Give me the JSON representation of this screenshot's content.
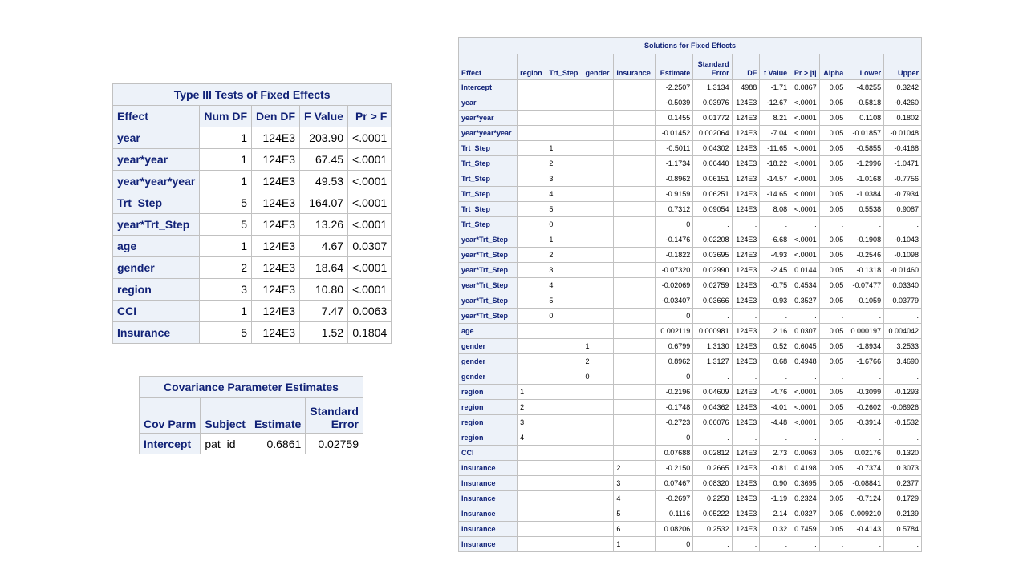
{
  "type3": {
    "title": "Type III Tests of Fixed Effects",
    "headers": [
      "Effect",
      "Num DF",
      "Den DF",
      "F Value",
      "Pr > F"
    ],
    "rows": [
      [
        "year",
        "1",
        "124E3",
        "203.90",
        "<.0001"
      ],
      [
        "year*year",
        "1",
        "124E3",
        "67.45",
        "<.0001"
      ],
      [
        "year*year*year",
        "1",
        "124E3",
        "49.53",
        "<.0001"
      ],
      [
        "Trt_Step",
        "5",
        "124E3",
        "164.07",
        "<.0001"
      ],
      [
        "year*Trt_Step",
        "5",
        "124E3",
        "13.26",
        "<.0001"
      ],
      [
        "age",
        "1",
        "124E3",
        "4.67",
        "0.0307"
      ],
      [
        "gender",
        "2",
        "124E3",
        "18.64",
        "<.0001"
      ],
      [
        "region",
        "3",
        "124E3",
        "10.80",
        "<.0001"
      ],
      [
        "CCI",
        "1",
        "124E3",
        "7.47",
        "0.0063"
      ],
      [
        "Insurance",
        "5",
        "124E3",
        "1.52",
        "0.1804"
      ]
    ]
  },
  "cov": {
    "title": "Covariance Parameter Estimates",
    "headers": [
      [
        "Cov Parm"
      ],
      [
        "Subject"
      ],
      [
        "Estimate"
      ],
      [
        "Standard",
        "Error"
      ]
    ],
    "rows": [
      [
        "Intercept",
        "pat_id",
        "0.6861",
        "0.02759"
      ]
    ]
  },
  "solutions": {
    "title": "Solutions for Fixed Effects",
    "headers": [
      [
        "Effect"
      ],
      [
        "region"
      ],
      [
        "Trt_Step"
      ],
      [
        "gender"
      ],
      [
        "Insurance"
      ],
      [
        "Estimate"
      ],
      [
        "Standard",
        "Error"
      ],
      [
        "DF"
      ],
      [
        "t Value"
      ],
      [
        "Pr > |t|"
      ],
      [
        "Alpha"
      ],
      [
        "Lower"
      ],
      [
        "Upper"
      ]
    ],
    "rows": [
      [
        "Intercept",
        "",
        "",
        "",
        "",
        "-2.2507",
        "1.3134",
        "4988",
        "-1.71",
        "0.0867",
        "0.05",
        "-4.8255",
        "0.3242"
      ],
      [
        "year",
        "",
        "",
        "",
        "",
        "-0.5039",
        "0.03976",
        "124E3",
        "-12.67",
        "<.0001",
        "0.05",
        "-0.5818",
        "-0.4260"
      ],
      [
        "year*year",
        "",
        "",
        "",
        "",
        "0.1455",
        "0.01772",
        "124E3",
        "8.21",
        "<.0001",
        "0.05",
        "0.1108",
        "0.1802"
      ],
      [
        "year*year*year",
        "",
        "",
        "",
        "",
        "-0.01452",
        "0.002064",
        "124E3",
        "-7.04",
        "<.0001",
        "0.05",
        "-0.01857",
        "-0.01048"
      ],
      [
        "Trt_Step",
        "",
        "1",
        "",
        "",
        "-0.5011",
        "0.04302",
        "124E3",
        "-11.65",
        "<.0001",
        "0.05",
        "-0.5855",
        "-0.4168"
      ],
      [
        "Trt_Step",
        "",
        "2",
        "",
        "",
        "-1.1734",
        "0.06440",
        "124E3",
        "-18.22",
        "<.0001",
        "0.05",
        "-1.2996",
        "-1.0471"
      ],
      [
        "Trt_Step",
        "",
        "3",
        "",
        "",
        "-0.8962",
        "0.06151",
        "124E3",
        "-14.57",
        "<.0001",
        "0.05",
        "-1.0168",
        "-0.7756"
      ],
      [
        "Trt_Step",
        "",
        "4",
        "",
        "",
        "-0.9159",
        "0.06251",
        "124E3",
        "-14.65",
        "<.0001",
        "0.05",
        "-1.0384",
        "-0.7934"
      ],
      [
        "Trt_Step",
        "",
        "5",
        "",
        "",
        "0.7312",
        "0.09054",
        "124E3",
        "8.08",
        "<.0001",
        "0.05",
        "0.5538",
        "0.9087"
      ],
      [
        "Trt_Step",
        "",
        "0",
        "",
        "",
        "0",
        ".",
        ".",
        ".",
        ".",
        ".",
        ".",
        "."
      ],
      [
        "year*Trt_Step",
        "",
        "1",
        "",
        "",
        "-0.1476",
        "0.02208",
        "124E3",
        "-6.68",
        "<.0001",
        "0.05",
        "-0.1908",
        "-0.1043"
      ],
      [
        "year*Trt_Step",
        "",
        "2",
        "",
        "",
        "-0.1822",
        "0.03695",
        "124E3",
        "-4.93",
        "<.0001",
        "0.05",
        "-0.2546",
        "-0.1098"
      ],
      [
        "year*Trt_Step",
        "",
        "3",
        "",
        "",
        "-0.07320",
        "0.02990",
        "124E3",
        "-2.45",
        "0.0144",
        "0.05",
        "-0.1318",
        "-0.01460"
      ],
      [
        "year*Trt_Step",
        "",
        "4",
        "",
        "",
        "-0.02069",
        "0.02759",
        "124E3",
        "-0.75",
        "0.4534",
        "0.05",
        "-0.07477",
        "0.03340"
      ],
      [
        "year*Trt_Step",
        "",
        "5",
        "",
        "",
        "-0.03407",
        "0.03666",
        "124E3",
        "-0.93",
        "0.3527",
        "0.05",
        "-0.1059",
        "0.03779"
      ],
      [
        "year*Trt_Step",
        "",
        "0",
        "",
        "",
        "0",
        ".",
        ".",
        ".",
        ".",
        ".",
        ".",
        "."
      ],
      [
        "age",
        "",
        "",
        "",
        "",
        "0.002119",
        "0.000981",
        "124E3",
        "2.16",
        "0.0307",
        "0.05",
        "0.000197",
        "0.004042"
      ],
      [
        "gender",
        "",
        "",
        "1",
        "",
        "0.6799",
        "1.3130",
        "124E3",
        "0.52",
        "0.6045",
        "0.05",
        "-1.8934",
        "3.2533"
      ],
      [
        "gender",
        "",
        "",
        "2",
        "",
        "0.8962",
        "1.3127",
        "124E3",
        "0.68",
        "0.4948",
        "0.05",
        "-1.6766",
        "3.4690"
      ],
      [
        "gender",
        "",
        "",
        "0",
        "",
        "0",
        ".",
        ".",
        ".",
        ".",
        ".",
        ".",
        "."
      ],
      [
        "region",
        "1",
        "",
        "",
        "",
        "-0.2196",
        "0.04609",
        "124E3",
        "-4.76",
        "<.0001",
        "0.05",
        "-0.3099",
        "-0.1293"
      ],
      [
        "region",
        "2",
        "",
        "",
        "",
        "-0.1748",
        "0.04362",
        "124E3",
        "-4.01",
        "<.0001",
        "0.05",
        "-0.2602",
        "-0.08926"
      ],
      [
        "region",
        "3",
        "",
        "",
        "",
        "-0.2723",
        "0.06076",
        "124E3",
        "-4.48",
        "<.0001",
        "0.05",
        "-0.3914",
        "-0.1532"
      ],
      [
        "region",
        "4",
        "",
        "",
        "",
        "0",
        ".",
        ".",
        ".",
        ".",
        ".",
        ".",
        "."
      ],
      [
        "CCI",
        "",
        "",
        "",
        "",
        "0.07688",
        "0.02812",
        "124E3",
        "2.73",
        "0.0063",
        "0.05",
        "0.02176",
        "0.1320"
      ],
      [
        "Insurance",
        "",
        "",
        "",
        "2",
        "-0.2150",
        "0.2665",
        "124E3",
        "-0.81",
        "0.4198",
        "0.05",
        "-0.7374",
        "0.3073"
      ],
      [
        "Insurance",
        "",
        "",
        "",
        "3",
        "0.07467",
        "0.08320",
        "124E3",
        "0.90",
        "0.3695",
        "0.05",
        "-0.08841",
        "0.2377"
      ],
      [
        "Insurance",
        "",
        "",
        "",
        "4",
        "-0.2697",
        "0.2258",
        "124E3",
        "-1.19",
        "0.2324",
        "0.05",
        "-0.7124",
        "0.1729"
      ],
      [
        "Insurance",
        "",
        "",
        "",
        "5",
        "0.1116",
        "0.05222",
        "124E3",
        "2.14",
        "0.0327",
        "0.05",
        "0.009210",
        "0.2139"
      ],
      [
        "Insurance",
        "",
        "",
        "",
        "6",
        "0.08206",
        "0.2532",
        "124E3",
        "0.32",
        "0.7459",
        "0.05",
        "-0.4143",
        "0.5784"
      ],
      [
        "Insurance",
        "",
        "",
        "",
        "1",
        "0",
        ".",
        ".",
        ".",
        ".",
        ".",
        ".",
        "."
      ]
    ]
  }
}
